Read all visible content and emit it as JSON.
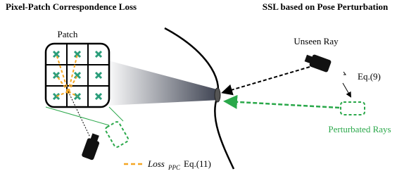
{
  "left_title": "Pixel-Patch Correspondence Loss",
  "right_title": "SSL based on Pose Perturbation",
  "patch_label": "Patch",
  "unseen_ray_label": "Unseen Ray",
  "eq9_label": "Eq.(9)",
  "perturbated_label": "Perturbated Rays",
  "legend": {
    "name": "Loss",
    "subscript": "PPC",
    "equation": "Eq.(11)"
  }
}
